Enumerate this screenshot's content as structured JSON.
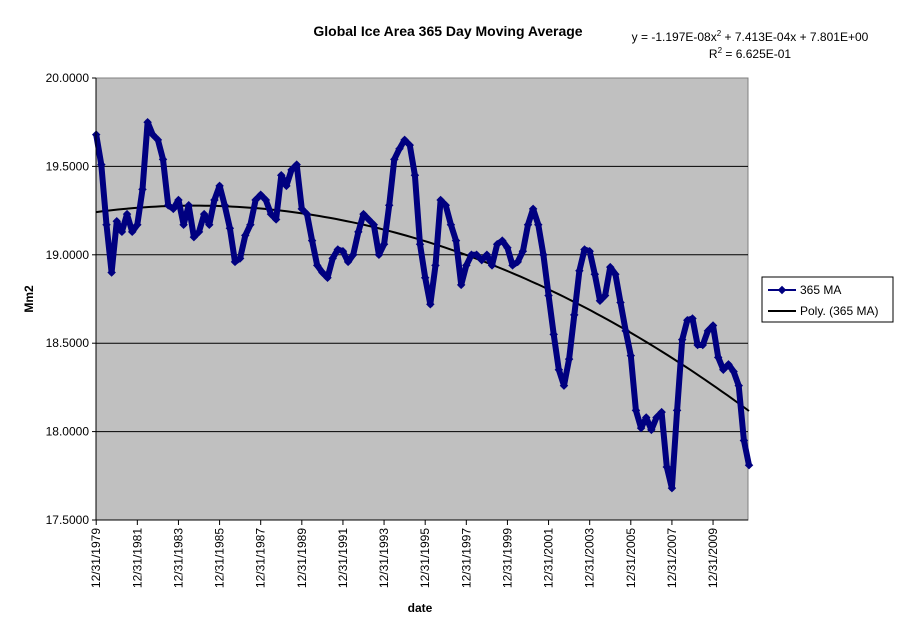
{
  "chart_data": {
    "type": "line",
    "title": "Global Ice Area 365 Day Moving Average",
    "xlabel": "date",
    "ylabel": "Mm2",
    "ylim": [
      17.5,
      20.0
    ],
    "yticks": [
      "17.5000",
      "18.0000",
      "18.5000",
      "19.0000",
      "19.5000",
      "20.0000"
    ],
    "ytick_values": [
      17.5,
      18.0,
      18.5,
      19.0,
      19.5,
      20.0
    ],
    "xlim_years": [
      1979.99,
      2011.7
    ],
    "xtick_labels": [
      "12/31/1979",
      "12/31/1981",
      "12/31/1983",
      "12/31/1985",
      "12/31/1987",
      "12/31/1989",
      "12/31/1991",
      "12/31/1993",
      "12/31/1995",
      "12/31/1997",
      "12/31/1999",
      "12/31/2001",
      "12/31/2003",
      "12/31/2005",
      "12/31/2007",
      "12/31/2009"
    ],
    "xtick_years": [
      1980,
      1982,
      1984,
      1986,
      1988,
      1990,
      1992,
      1994,
      1996,
      1998,
      2000,
      2002,
      2004,
      2006,
      2008,
      2010
    ],
    "grid": "horizontal",
    "legend_position": "right",
    "series": [
      {
        "name": "365 MA",
        "color": "#000080",
        "x_start_year": 1980.0,
        "x_step_years": 0.25,
        "values": [
          19.68,
          19.51,
          19.17,
          18.9,
          19.19,
          19.13,
          19.23,
          19.13,
          19.17,
          19.37,
          19.75,
          19.68,
          19.65,
          19.54,
          19.28,
          19.26,
          19.31,
          19.17,
          19.28,
          19.1,
          19.13,
          19.23,
          19.17,
          19.31,
          19.39,
          19.28,
          19.15,
          18.96,
          18.98,
          19.11,
          19.17,
          19.31,
          19.34,
          19.31,
          19.23,
          19.2,
          19.45,
          19.39,
          19.48,
          19.51,
          19.26,
          19.23,
          19.08,
          18.94,
          18.9,
          18.87,
          18.98,
          19.03,
          19.02,
          18.96,
          19.0,
          19.13,
          19.23,
          19.2,
          19.17,
          19.0,
          19.06,
          19.28,
          19.54,
          19.6,
          19.65,
          19.62,
          19.45,
          19.06,
          18.87,
          18.72,
          18.94,
          19.31,
          19.28,
          19.17,
          19.08,
          18.83,
          18.94,
          19.0,
          19.0,
          18.97,
          19.0,
          18.94,
          19.06,
          19.08,
          19.04,
          18.94,
          18.96,
          19.02,
          19.17,
          19.26,
          19.17,
          19.0,
          18.77,
          18.55,
          18.35,
          18.26,
          18.41,
          18.66,
          18.91,
          19.03,
          19.02,
          18.89,
          18.74,
          18.77,
          18.93,
          18.89,
          18.73,
          18.57,
          18.43,
          18.12,
          18.02,
          18.08,
          18.01,
          18.08,
          18.11,
          17.8,
          17.68,
          18.12,
          18.52,
          18.63,
          18.64,
          18.49,
          18.49,
          18.57,
          18.6,
          18.42,
          18.35,
          18.38,
          18.34,
          18.26,
          17.95,
          17.81
        ]
      },
      {
        "name": "Poly. (365 MA)",
        "color": "#000000",
        "kind": "polynomial-trendline",
        "x_unit": "excel-date-serial",
        "coefficients": {
          "a": -1.197e-08,
          "b": 0.0007413,
          "c": 7.801
        }
      }
    ],
    "annotations": {
      "equation_prefix": "y = -1.197E-08x",
      "equation_suffix": " + 7.413E-04x + 7.801E+00",
      "r2_prefix": "R",
      "r2_suffix": " = 6.625E-01",
      "superscript": "2"
    }
  }
}
